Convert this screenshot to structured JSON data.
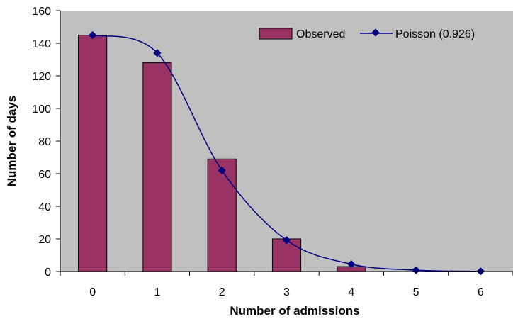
{
  "chart_data": {
    "type": "bar",
    "categories": [
      "0",
      "1",
      "2",
      "3",
      "4",
      "5",
      "6"
    ],
    "series": [
      {
        "name": "Observed",
        "kind": "bar",
        "values": [
          145,
          128,
          69,
          20,
          3,
          0,
          0
        ]
      },
      {
        "name": "Poisson (0.926)",
        "kind": "line",
        "values": [
          145,
          134,
          62,
          19.2,
          4.5,
          0.8,
          0.1
        ]
      }
    ],
    "xlabel": "Number of admissions",
    "ylabel": "Number of days",
    "ylim": [
      0,
      160
    ],
    "yticks": [
      "0",
      "20",
      "40",
      "60",
      "80",
      "100",
      "120",
      "140",
      "160"
    ],
    "grid": false,
    "legend": "top-right",
    "colors": {
      "plot_background": "#c0c0c0",
      "bar_fill": "#993366",
      "line": "#000080",
      "marker": "#000080"
    }
  }
}
